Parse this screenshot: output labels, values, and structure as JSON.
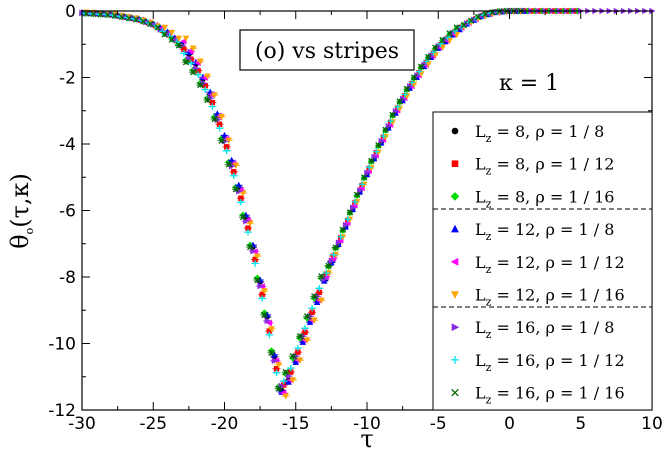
{
  "chart_data": {
    "type": "scatter",
    "title": "",
    "xlabel": "τ",
    "ylabel": "θo(τ,κ)",
    "xlim": [
      -30,
      10
    ],
    "ylim": [
      -12,
      0
    ],
    "x_ticks": [
      -30,
      -25,
      -20,
      -15,
      -10,
      -5,
      0,
      5,
      10
    ],
    "y_ticks": [
      0,
      -2,
      -4,
      -6,
      -8,
      -10,
      -12
    ],
    "x_tick_labels": [
      "-30",
      "-25",
      "-20",
      "-15",
      "-10",
      "-5",
      "0",
      "5",
      "10"
    ],
    "y_tick_labels": [
      "0",
      "-2",
      "-4",
      "-6",
      "-8",
      "-10",
      "-12"
    ],
    "grid": false,
    "legend_position": "right",
    "annotations": {
      "box_label": "(o) vs stripes",
      "kappa_label": "κ = 1"
    },
    "series": [
      {
        "name": "Lz=8, ρ = 1 / 8",
        "legend": {
          "sub": "z",
          "main": "L",
          "rest": " = 8, ρ = 1 / 8"
        },
        "color": "#000000",
        "marker": "circle",
        "shift": 0.0
      },
      {
        "name": "Lz=8, ρ = 1 / 12",
        "legend": {
          "sub": "z",
          "main": "L",
          "rest": " = 8, ρ = 1 / 12"
        },
        "color": "#ff0000",
        "marker": "square",
        "shift": 0.05
      },
      {
        "name": "Lz=8, ρ = 1 / 16",
        "legend": {
          "sub": "z",
          "main": "L",
          "rest": " = 8, ρ = 1 / 16"
        },
        "color": "#00dd00",
        "marker": "diamond",
        "shift": 0.25
      },
      {
        "name": "Lz=12, ρ = 1 / 8",
        "legend": {
          "sub": "z",
          "main": "L",
          "rest": " = 12, ρ = 1 / 8"
        },
        "color": "#0000ff",
        "marker": "triangle-up",
        "shift": -0.05
      },
      {
        "name": "Lz=12, ρ = 1 / 12",
        "legend": {
          "sub": "z",
          "main": "L",
          "rest": " = 12, ρ = 1 / 12"
        },
        "color": "#ff00ff",
        "marker": "triangle-left",
        "shift": -0.15
      },
      {
        "name": "Lz=12, ρ = 1 / 16",
        "legend": {
          "sub": "z",
          "main": "L",
          "rest": " = 12, ρ = 1 / 16"
        },
        "color": "#ffa500",
        "marker": "triangle-down",
        "shift": -0.3
      },
      {
        "name": "Lz=16, ρ = 1 / 8",
        "legend": {
          "sub": "z",
          "main": "L",
          "rest": " = 16, ρ = 1 / 8"
        },
        "color": "#8a2be2",
        "marker": "triangle-right",
        "shift": 0.1
      },
      {
        "name": "Lz=16, ρ = 1 / 12",
        "legend": {
          "sub": "z",
          "main": "L",
          "rest": " = 16, ρ = 1 / 12"
        },
        "color": "#00e5ee",
        "marker": "plus",
        "shift": 0.15
      },
      {
        "name": "Lz=16, ρ = 1 / 16",
        "legend": {
          "sub": "z",
          "main": "L",
          "rest": " = 16, ρ = 1 / 16"
        },
        "color": "#006400",
        "marker": "cross",
        "shift": 0.3
      }
    ],
    "curve": {
      "tau": [
        -30,
        -28,
        -26,
        -25,
        -24,
        -23,
        -22,
        -21,
        -20,
        -19,
        -18,
        -17,
        -16.5,
        -16,
        -15.5,
        -15,
        -14,
        -13,
        -12,
        -11,
        -10,
        -9,
        -8,
        -7,
        -6,
        -5,
        -4,
        -3,
        -2,
        -1,
        0,
        1,
        10
      ],
      "theta": [
        -0.05,
        -0.1,
        -0.25,
        -0.4,
        -0.65,
        -1.0,
        -1.6,
        -2.5,
        -3.8,
        -5.3,
        -7.1,
        -9.2,
        -10.4,
        -11.4,
        -11.1,
        -10.5,
        -9.3,
        -8.1,
        -7.0,
        -5.95,
        -4.9,
        -3.95,
        -3.05,
        -2.3,
        -1.65,
        -1.1,
        -0.7,
        -0.38,
        -0.16,
        -0.04,
        0.0,
        0.0,
        0.0
      ]
    }
  }
}
